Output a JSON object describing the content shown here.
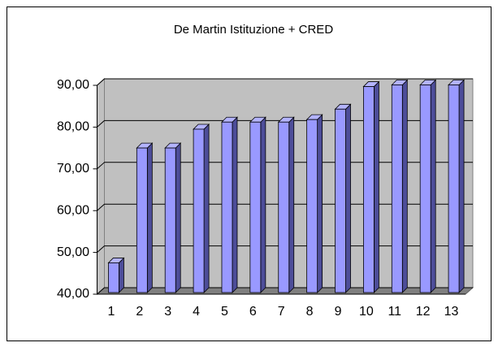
{
  "chart_data": {
    "type": "bar3d",
    "title": "De Martin Istituzione + CRED",
    "categories": [
      "1",
      "2",
      "3",
      "4",
      "5",
      "6",
      "7",
      "8",
      "9",
      "10",
      "11",
      "12",
      "13"
    ],
    "values": [
      47.5,
      75,
      75,
      79.5,
      81.2,
      81.2,
      81.2,
      81.8,
      84.3,
      89.7,
      90.1,
      90.1,
      90.1
    ],
    "color": "#9999ff",
    "ylim": [
      40,
      90
    ],
    "yticks": [
      {
        "value": 40,
        "label": "40,00"
      },
      {
        "value": 50,
        "label": "50,00"
      },
      {
        "value": 60,
        "label": "60,00"
      },
      {
        "value": 70,
        "label": "70,00"
      },
      {
        "value": 80,
        "label": "80,00"
      },
      {
        "value": 90,
        "label": "90,00"
      }
    ],
    "grid": true
  }
}
